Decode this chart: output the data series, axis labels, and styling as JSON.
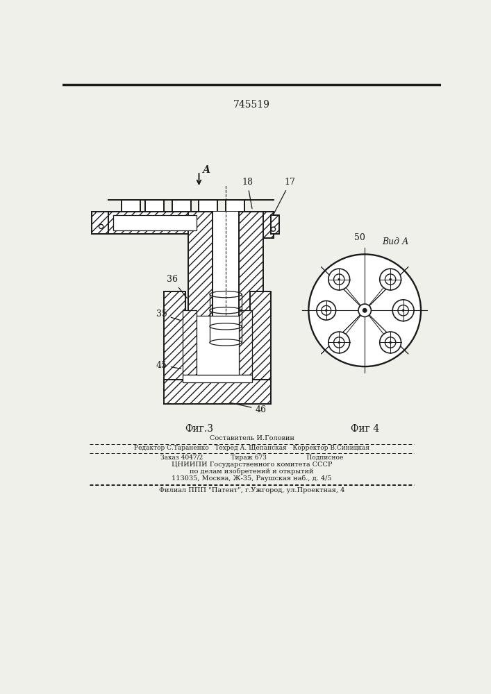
{
  "patent_number": "745519",
  "background_color": "#f0f0eb",
  "line_color": "#1a1a1a",
  "fig3_label": "Фиг.3",
  "fig4_label": "Фиг 4",
  "view_label": "Вид А",
  "arrow_label": "А",
  "label_17": "17",
  "label_18": "18",
  "label_36": "36",
  "label_35": "35",
  "label_45": "45",
  "label_46": "46",
  "label_50": "50",
  "footer_line1": "Составитель И.Головин",
  "footer_line2": "Редактор С.Тараненко   Техред А. Щепанская   Корректор В.Синицкая",
  "footer_line3": "Заказ 4047/2              Тираж 673                    Подписное",
  "footer_line4": "ЦНИИПИ Государственного комитета СССР",
  "footer_line5": "по делам изобретений и открытий",
  "footer_line6": "113035, Москва, Ж-35, Раушская наб., д. 4/5",
  "footer_line7": "Филиал ППП \"Патент\", г.Ужгород, ул.Проектная, 4"
}
